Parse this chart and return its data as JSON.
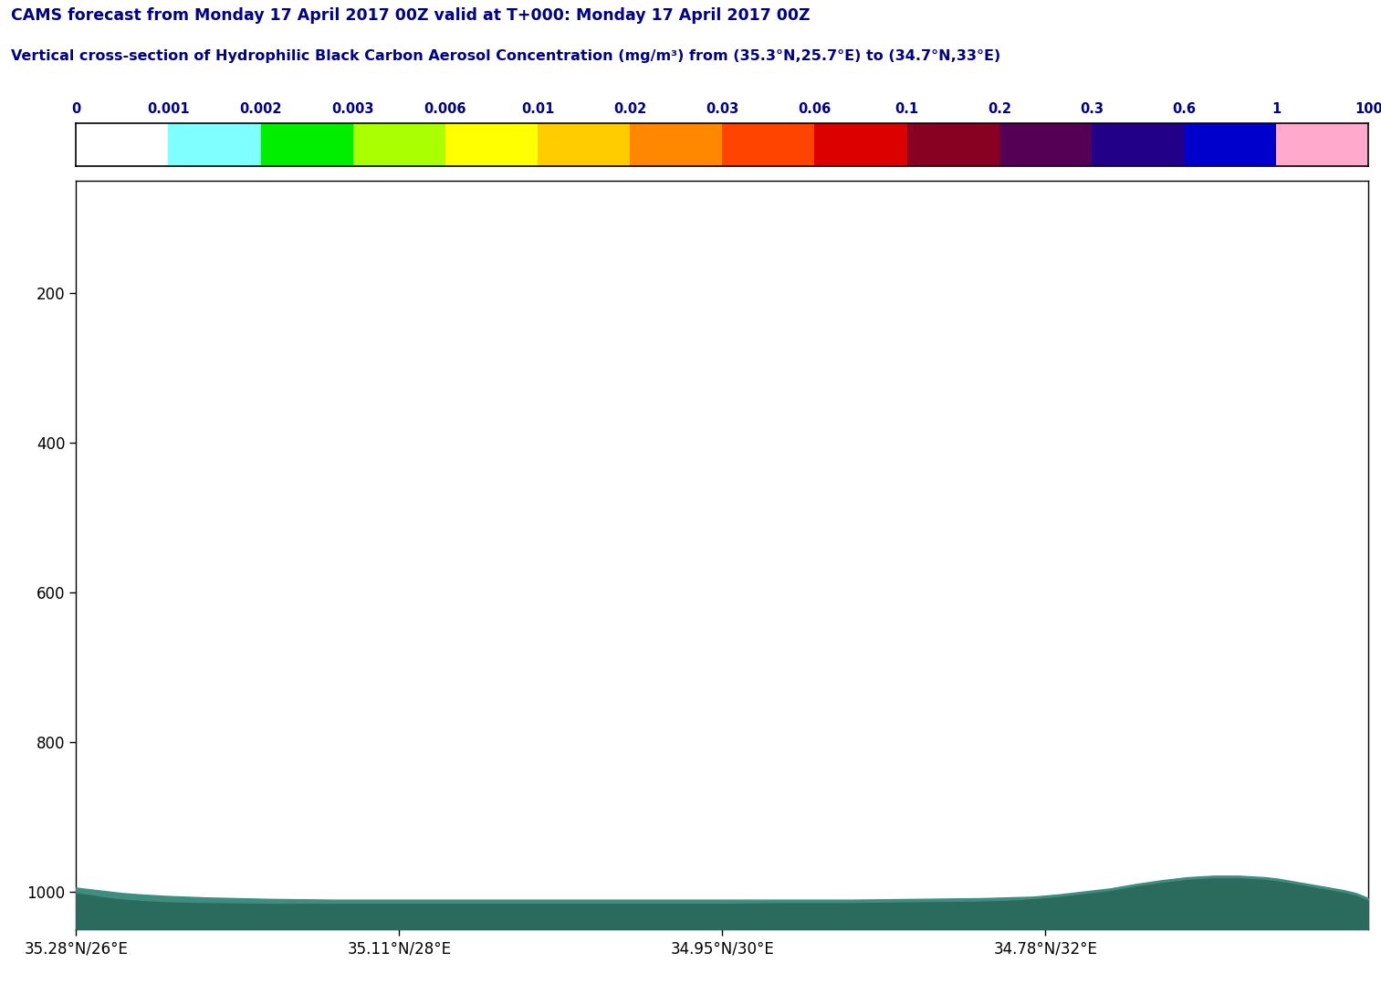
{
  "title1": "CAMS forecast from Monday 17 April 2017 00Z valid at T+000: Monday 17 April 2017 00Z",
  "title2": "Vertical cross-section of Hydrophilic Black Carbon Aerosol Concentration (mg/m³) from (35.3°N,25.7°E) to (34.7°N,33°E)",
  "title_color": "#00008B",
  "colorbar_tick_labels": [
    "0",
    "0.001",
    "0.002",
    "0.003",
    "0.006",
    "0.01",
    "0.02",
    "0.03",
    "0.06",
    "0.1",
    "0.2",
    "0.3",
    "0.6",
    "1",
    "100"
  ],
  "colorbar_colors": [
    "#ffffff",
    "#7fffff",
    "#00ee00",
    "#aaff00",
    "#ffff00",
    "#ffcc00",
    "#ff8800",
    "#ff4400",
    "#dd0000",
    "#880022",
    "#550055",
    "#220088",
    "#0000cc",
    "#ffaacc"
  ],
  "ylim": [
    1050,
    50
  ],
  "yticks": [
    200,
    400,
    600,
    800,
    1000
  ],
  "xtick_positions": [
    0.0,
    0.25,
    0.5,
    0.75
  ],
  "xtick_labels": [
    "35.28°N/26°E",
    "35.11°N/28°E",
    "34.95°N/30°E",
    "34.78°N/32°E"
  ],
  "background_color": "#ffffff",
  "terrain_color_dark": "#2a6b5e",
  "terrain_color_light": "#3d8e7e",
  "surf_x": [
    0.0,
    0.01,
    0.02,
    0.035,
    0.05,
    0.07,
    0.1,
    0.15,
    0.2,
    0.25,
    0.3,
    0.35,
    0.4,
    0.45,
    0.5,
    0.55,
    0.6,
    0.65,
    0.7,
    0.72,
    0.74,
    0.76,
    0.78,
    0.8,
    0.82,
    0.84,
    0.86,
    0.88,
    0.9,
    0.91,
    0.92,
    0.93,
    0.94,
    0.95,
    0.96,
    0.97,
    0.98,
    0.99,
    1.0
  ],
  "surf_y": [
    1000,
    1002,
    1005,
    1008,
    1010,
    1012,
    1013,
    1014,
    1014,
    1014,
    1014,
    1014,
    1014,
    1014,
    1014,
    1013,
    1013,
    1012,
    1011,
    1010,
    1008,
    1005,
    1001,
    997,
    991,
    986,
    982,
    980,
    980,
    981,
    982,
    984,
    987,
    990,
    993,
    996,
    999,
    1003,
    1010
  ],
  "oro_x": [
    0.0,
    0.01,
    0.02,
    0.035,
    0.05,
    0.07,
    0.1,
    0.15,
    0.2,
    0.25,
    0.3,
    0.35,
    0.4,
    0.45,
    0.5,
    0.55,
    0.6,
    0.65,
    0.7,
    0.72,
    0.74,
    0.76,
    0.78,
    0.8,
    0.82,
    0.84,
    0.86,
    0.88,
    0.9,
    0.91,
    0.92,
    0.93,
    0.94,
    0.95,
    0.96,
    0.97,
    0.98,
    0.99,
    1.0
  ],
  "oro_y": [
    994,
    996,
    998,
    1001,
    1003,
    1005,
    1007,
    1009,
    1010,
    1010,
    1010,
    1010,
    1010,
    1010,
    1010,
    1010,
    1010,
    1009,
    1008,
    1007,
    1006,
    1003,
    999,
    995,
    989,
    984,
    980,
    978,
    978,
    979,
    980,
    982,
    985,
    988,
    991,
    994,
    997,
    1001,
    1008
  ]
}
